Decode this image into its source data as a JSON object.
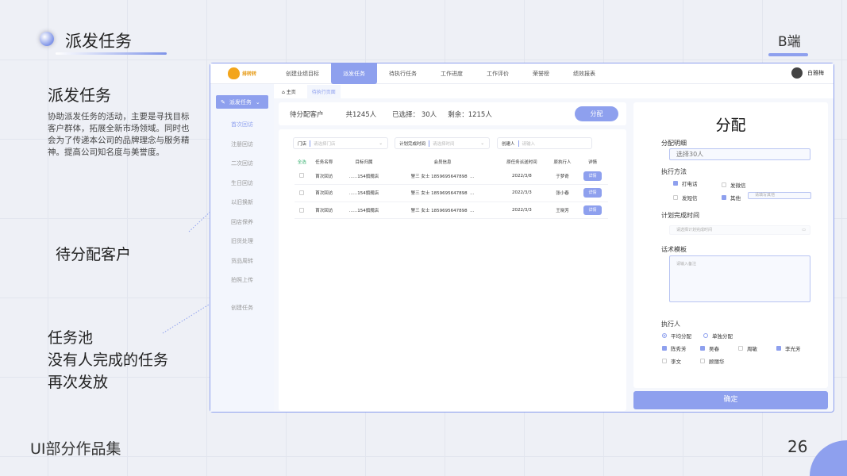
{
  "slide": {
    "title": "派发任务",
    "corner": "B端",
    "heading": "派发任务",
    "description": "协助派发任务的活动，主要是寻找目标客户群体，拓展全新市场领域。同时也会为了传递本公司的品牌理念与服务精神。提高公司知名度与美誉度。",
    "label_pending": "待分配客户",
    "label_pool": [
      "任务池",
      "没有人完成的任务",
      "再次发放"
    ],
    "footer": "UI部分作品集",
    "page_number": "26"
  },
  "app": {
    "logo_text": "排转转",
    "nav": [
      "创建业绩目标",
      "派发任务",
      "待执行任务",
      "工作进度",
      "工作评价",
      "荣誉榜",
      "绩效报表"
    ],
    "active_nav": 1,
    "user": "白雅梅",
    "sidebar": {
      "group": "派发任务",
      "items": [
        "首次回访",
        "注册回访",
        "二次回访",
        "生日回访",
        "以旧换新",
        "回店保养",
        "旧货处理",
        "货品周转",
        "拍照上传"
      ],
      "create": "创建任务"
    },
    "breadcrumb": [
      "主页",
      "待执行页面"
    ],
    "summary": {
      "label": "待分配客户",
      "total": "共1245人",
      "selected": "已选择： 30人",
      "remaining": "剩余：1215人",
      "button": "分配"
    },
    "filters": [
      {
        "label": "门店",
        "placeholder": "请选择门店"
      },
      {
        "label": "计划完成时间",
        "placeholder": "请选择时间"
      },
      {
        "label": "创建人",
        "placeholder": "请输入"
      }
    ],
    "table": {
      "headers": [
        "全选",
        "任务名称",
        "目标归属",
        "会员信息",
        "原任务派送时间",
        "原执行人",
        "详情"
      ],
      "rows": [
        {
          "name": "首次回访",
          "store": "......154旗舰店",
          "member": "警三 女士 1859695647898",
          "more": "...",
          "time": "2022/3/8",
          "exec": "于梦奇",
          "detail": "详情"
        },
        {
          "name": "首次回访",
          "store": "......154旗舰店",
          "member": "警三 女士 1859695647898",
          "more": "...",
          "time": "2022/3/3",
          "exec": "张小春",
          "detail": "详情"
        },
        {
          "name": "首次回访",
          "store": "......154旗舰店",
          "member": "警三 女士 1859695647898",
          "more": "...",
          "time": "2022/3/3",
          "exec": "王晓芳",
          "detail": "详情"
        }
      ]
    },
    "assign": {
      "title": "分配",
      "detail_label": "分配明细",
      "detail_value": "选择30人",
      "method_label": "执行方法",
      "methods": [
        {
          "label": "打电话",
          "checked": true
        },
        {
          "label": "发微信",
          "checked": false
        },
        {
          "label": "发短信",
          "checked": false
        },
        {
          "label": "其他",
          "checked": true
        }
      ],
      "other_placeholder": "请填写其他",
      "time_label": "计划完成时间",
      "time_placeholder": "请选择计划完成时间",
      "template_label": "话术模板",
      "template_placeholder": "请输入备注",
      "executor_label": "执行人",
      "modes": [
        {
          "label": "平均分配",
          "selected": true
        },
        {
          "label": "单独分配",
          "selected": false
        }
      ],
      "people": [
        {
          "name": "陈秀芳",
          "checked": true
        },
        {
          "name": "吴春",
          "checked": true
        },
        {
          "name": "周敏",
          "checked": false
        },
        {
          "name": "李光芳",
          "checked": true
        },
        {
          "name": "李文",
          "checked": false
        },
        {
          "name": "顾丽华",
          "checked": false
        }
      ],
      "confirm": "确定"
    },
    "accent": "#8ea0ee"
  }
}
